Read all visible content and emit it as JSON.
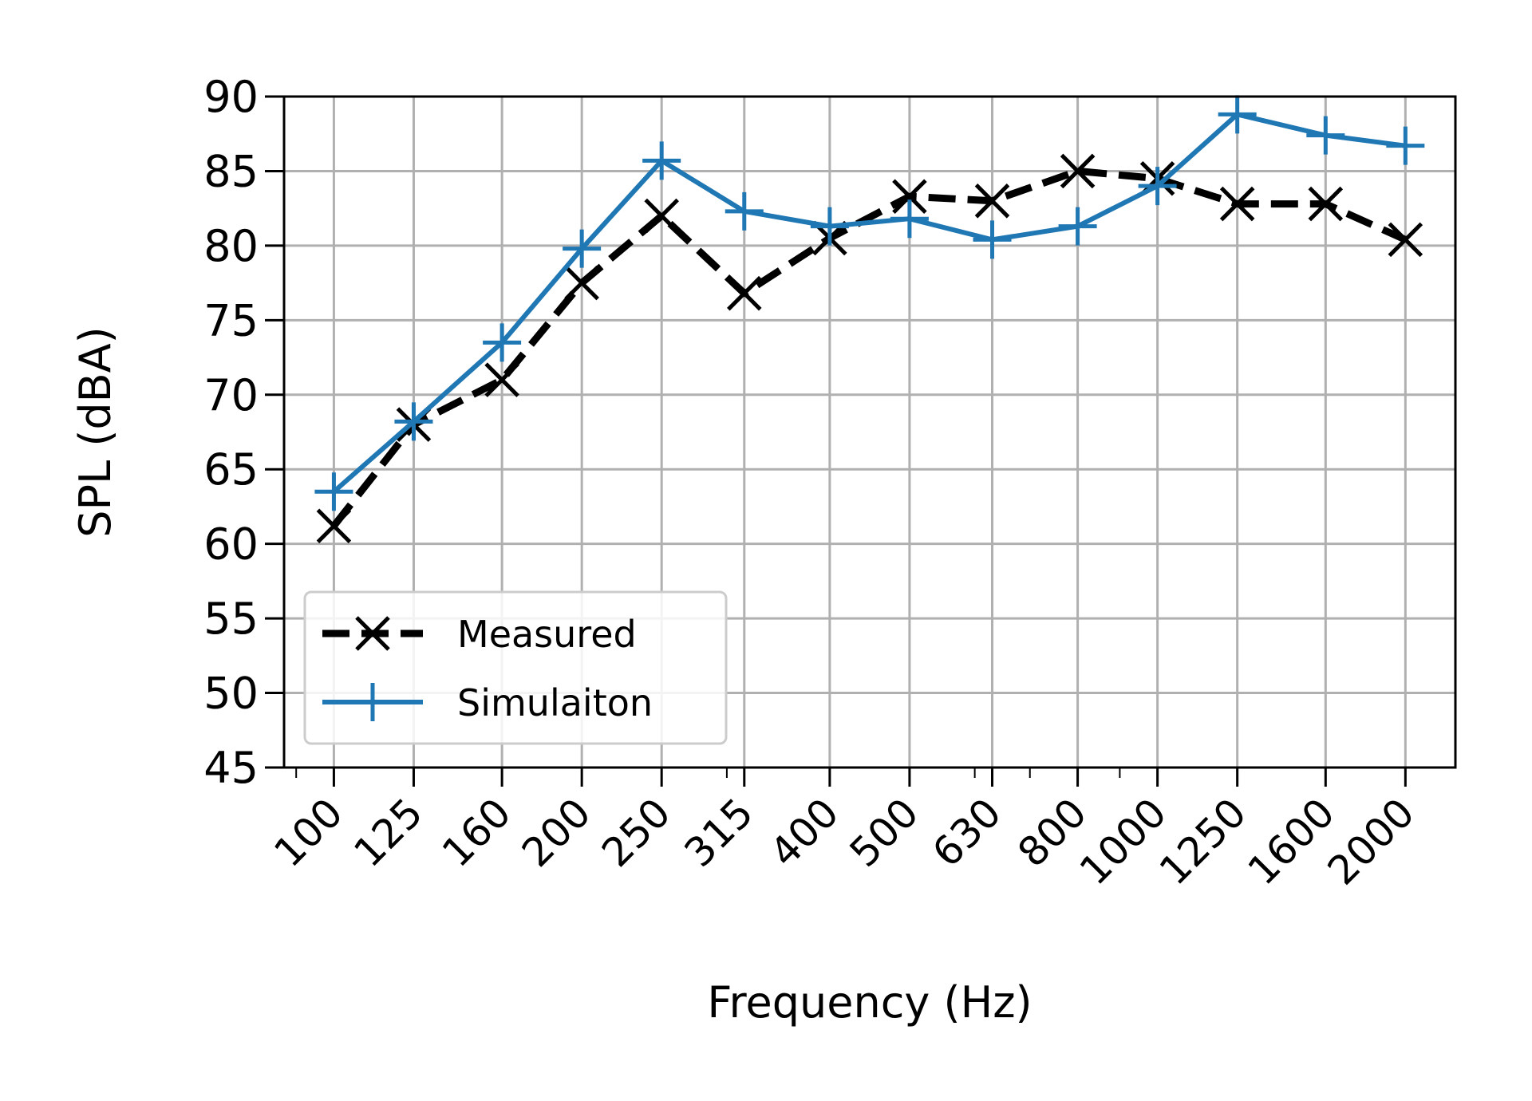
{
  "chart_data": {
    "type": "line",
    "xlabel": "Frequency (Hz)",
    "ylabel": "SPL (dBA)",
    "x_scale": "log",
    "categories": [
      "100",
      "125",
      "160",
      "200",
      "250",
      "315",
      "400",
      "500",
      "630",
      "800",
      "1000",
      "1250",
      "1600",
      "2000"
    ],
    "x": [
      100,
      125,
      160,
      200,
      250,
      315,
      400,
      500,
      630,
      800,
      1000,
      1250,
      1600,
      2000
    ],
    "xlim": [
      87,
      2300
    ],
    "ylim": [
      45,
      90
    ],
    "yticks": [
      45,
      50,
      55,
      60,
      65,
      70,
      75,
      80,
      85,
      90
    ],
    "grid": true,
    "legend_position": "lower left",
    "series": [
      {
        "name": "Measured",
        "color": "#000000",
        "line_style": "dashed",
        "marker": "x",
        "values": [
          61.2,
          68.0,
          71.0,
          77.5,
          82.0,
          76.8,
          80.5,
          83.3,
          83.0,
          85.0,
          84.5,
          82.8,
          82.8,
          80.4
        ]
      },
      {
        "name": "Simulaiton",
        "color": "#1f77b4",
        "line_style": "solid",
        "marker": "+",
        "values": [
          63.5,
          68.2,
          73.5,
          79.8,
          85.7,
          82.3,
          81.3,
          81.8,
          80.4,
          81.3,
          84.0,
          88.8,
          87.4,
          86.7
        ]
      }
    ]
  }
}
